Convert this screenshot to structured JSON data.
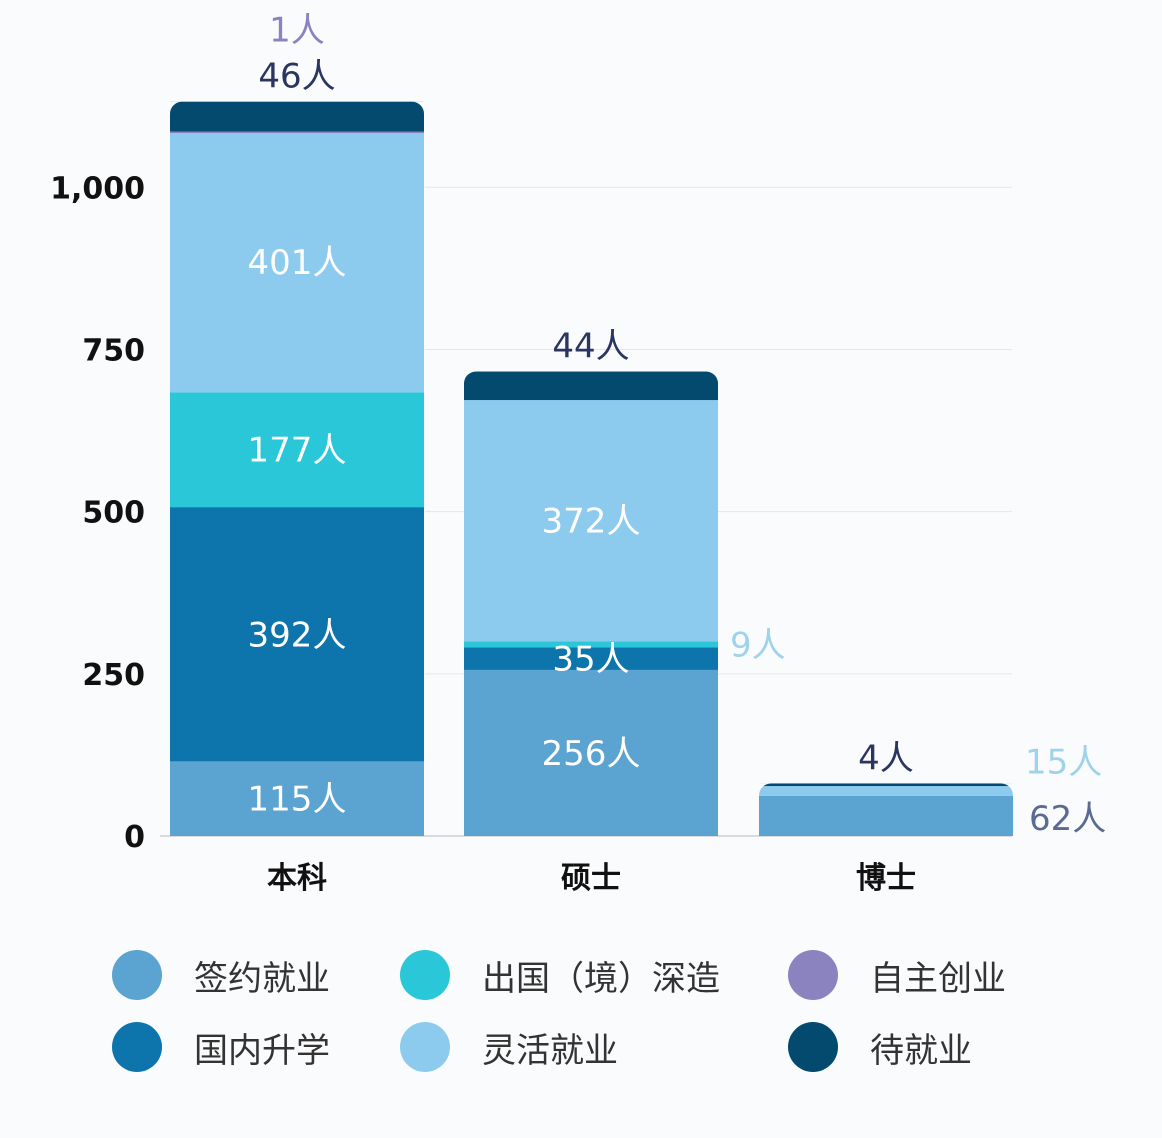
{
  "chart_data": {
    "type": "bar",
    "stacked": true,
    "categories": [
      "本科",
      "硕士",
      "博士"
    ],
    "ylim": [
      0,
      1150
    ],
    "yticks": [
      0,
      250,
      500,
      750,
      1000
    ],
    "ytick_labels": [
      "0",
      "250",
      "500",
      "750",
      "1,000"
    ],
    "grid": true,
    "legend_position": "bottom",
    "unit_suffix": "人",
    "series": [
      {
        "name": "签约就业",
        "color": "#5ba3d0",
        "values": [
          115,
          256,
          62
        ]
      },
      {
        "name": "国内升学",
        "color": "#0e75ac",
        "values": [
          392,
          35,
          null
        ]
      },
      {
        "name": "出国（境）深造",
        "color": "#29c7d8",
        "values": [
          177,
          9,
          null
        ]
      },
      {
        "name": "灵活就业",
        "color": "#8ccbee",
        "values": [
          401,
          372,
          15
        ]
      },
      {
        "name": "自主创业",
        "color": "#8b82c0",
        "values": [
          1,
          null,
          null
        ]
      },
      {
        "name": "待就业",
        "color": "#034a6e",
        "values": [
          46,
          44,
          4
        ]
      }
    ],
    "legend_order": [
      0,
      2,
      4,
      1,
      3,
      5
    ]
  }
}
